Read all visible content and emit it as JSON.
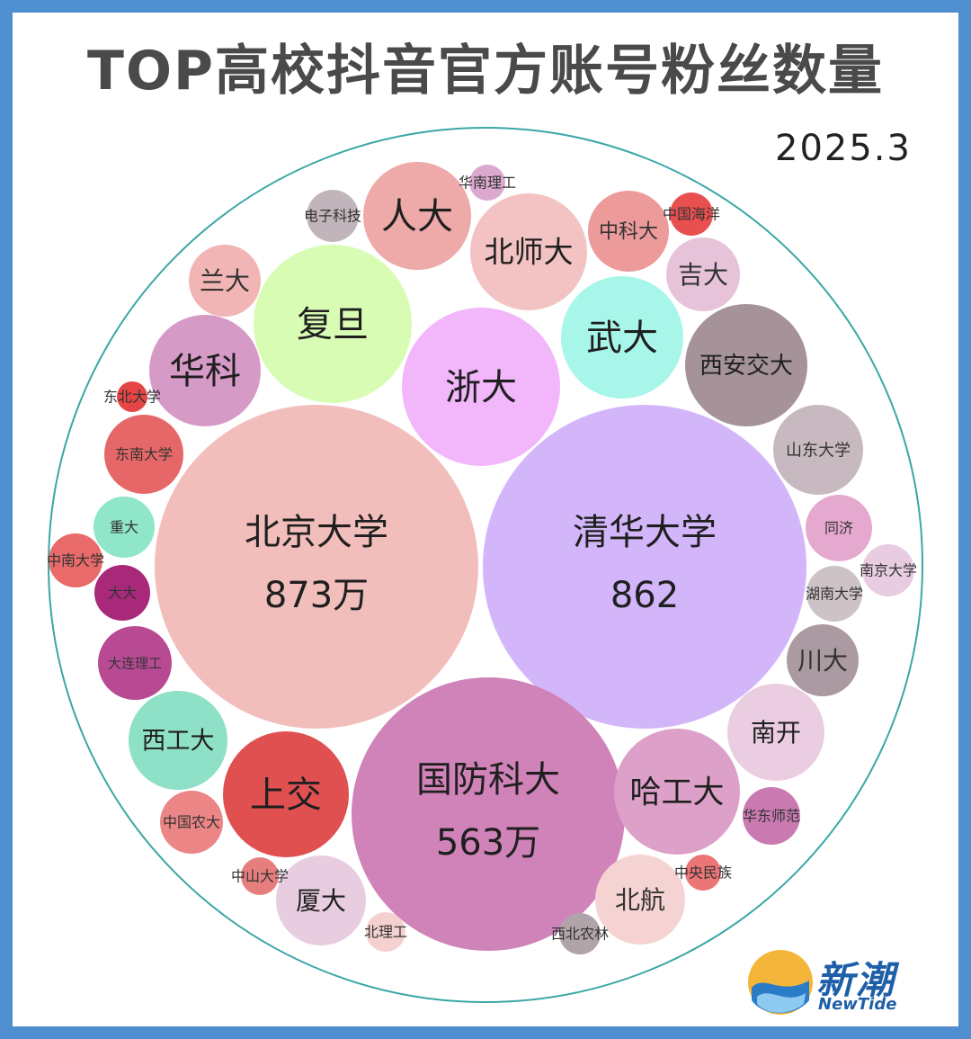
{
  "header": {
    "title": "TOP高校抖音官方账号粉丝数量",
    "date": "2025.3"
  },
  "logo": {
    "name_cn": "新潮",
    "name_en": "NewTide"
  },
  "colors": {
    "background": "#4f8fcf",
    "outer_circle_stroke": "#3aa7a5"
  },
  "chart_data": {
    "type": "bubble",
    "title": "TOP高校抖音官方账号粉丝数量",
    "subtitle": "2025.3",
    "unit": "万",
    "items": [
      {
        "name": "北京大学",
        "value": 873,
        "value_label": "873万",
        "color": "#f2bebb"
      },
      {
        "name": "清华大学",
        "value": 862,
        "value_label": "862",
        "color": "#d3b6fa"
      },
      {
        "name": "国防科大",
        "value": 563,
        "value_label": "563万",
        "color": "#d083b8"
      },
      {
        "name": "复旦",
        "value": 200,
        "color": "#d8fcb3"
      },
      {
        "name": "浙大",
        "value": 203,
        "color": "#f2b6fb"
      },
      {
        "name": "哈工大",
        "value": 126,
        "color": "#dda0c8"
      },
      {
        "name": "上交",
        "value": 126,
        "color": "#e05050"
      },
      {
        "name": "武大",
        "value": 117,
        "color": "#a8f6ea"
      },
      {
        "name": "西安交大",
        "value": 117,
        "color": "#a59399"
      },
      {
        "name": "北师大",
        "value": 111,
        "color": "#f3c3c3"
      },
      {
        "name": "人大",
        "value": 96,
        "color": "#eea9a9"
      },
      {
        "name": "华科",
        "value": 103,
        "color": "#d69ac7"
      },
      {
        "name": "南开",
        "value": 77,
        "color": "#ebcde2"
      },
      {
        "name": "厦大",
        "value": 67,
        "color": "#e8cde0"
      },
      {
        "name": "西工大",
        "value": 80,
        "color": "#8ee0c6"
      },
      {
        "name": "中科大",
        "value": 55,
        "color": "#ec9a9a"
      },
      {
        "name": "北航",
        "value": 68,
        "color": "#f5d3d3"
      },
      {
        "name": "山东大学",
        "value": 66,
        "color": "#c7b9bf"
      },
      {
        "name": "吉大",
        "value": 46,
        "color": "#e6c3d9"
      },
      {
        "name": "东南大学",
        "value": 44,
        "color": "#e66767"
      },
      {
        "name": "大连理工",
        "value": 43,
        "color": "#b84a94"
      },
      {
        "name": "川大",
        "value": 41,
        "color": "#ab9aa2"
      },
      {
        "name": "华东师范",
        "value": 26,
        "color": "#c97ab0"
      },
      {
        "name": "重大",
        "value": 29,
        "color": "#8fe6c9"
      },
      {
        "name": "同济",
        "value": 34,
        "color": "#e5a8cf"
      },
      {
        "name": "中国农大",
        "value": 30,
        "color": "#ec8585"
      },
      {
        "name": "湖南大学",
        "value": 23,
        "color": "#cdc3c6"
      },
      {
        "name": "兰大",
        "value": 25,
        "color": "#f2b5b5"
      },
      {
        "name": "中南大学",
        "value": 21,
        "color": "#e86a6a"
      },
      {
        "name": "南京大学",
        "value": 20,
        "color": "#e8cde2"
      },
      {
        "name": "大大",
        "value": 15,
        "color": "#a8287a"
      },
      {
        "name": "电子科技",
        "value": 12,
        "color": "#c1b5bb"
      },
      {
        "name": "北理工",
        "value": 7,
        "color": "#f5d0d0"
      },
      {
        "name": "西北农林",
        "value": 7,
        "color": "#b1a3aa"
      },
      {
        "name": "中山大学",
        "value": 5,
        "color": "#e67e7e"
      },
      {
        "name": "中央民族",
        "value": 5,
        "color": "#ec7575"
      },
      {
        "name": "中国海洋",
        "value": 4,
        "color": "#e84f4f"
      },
      {
        "name": "华南理工",
        "value": 3,
        "color": "#dba9cf"
      },
      {
        "name": "东北大学",
        "value": 2,
        "color": "#e64545"
      }
    ]
  }
}
